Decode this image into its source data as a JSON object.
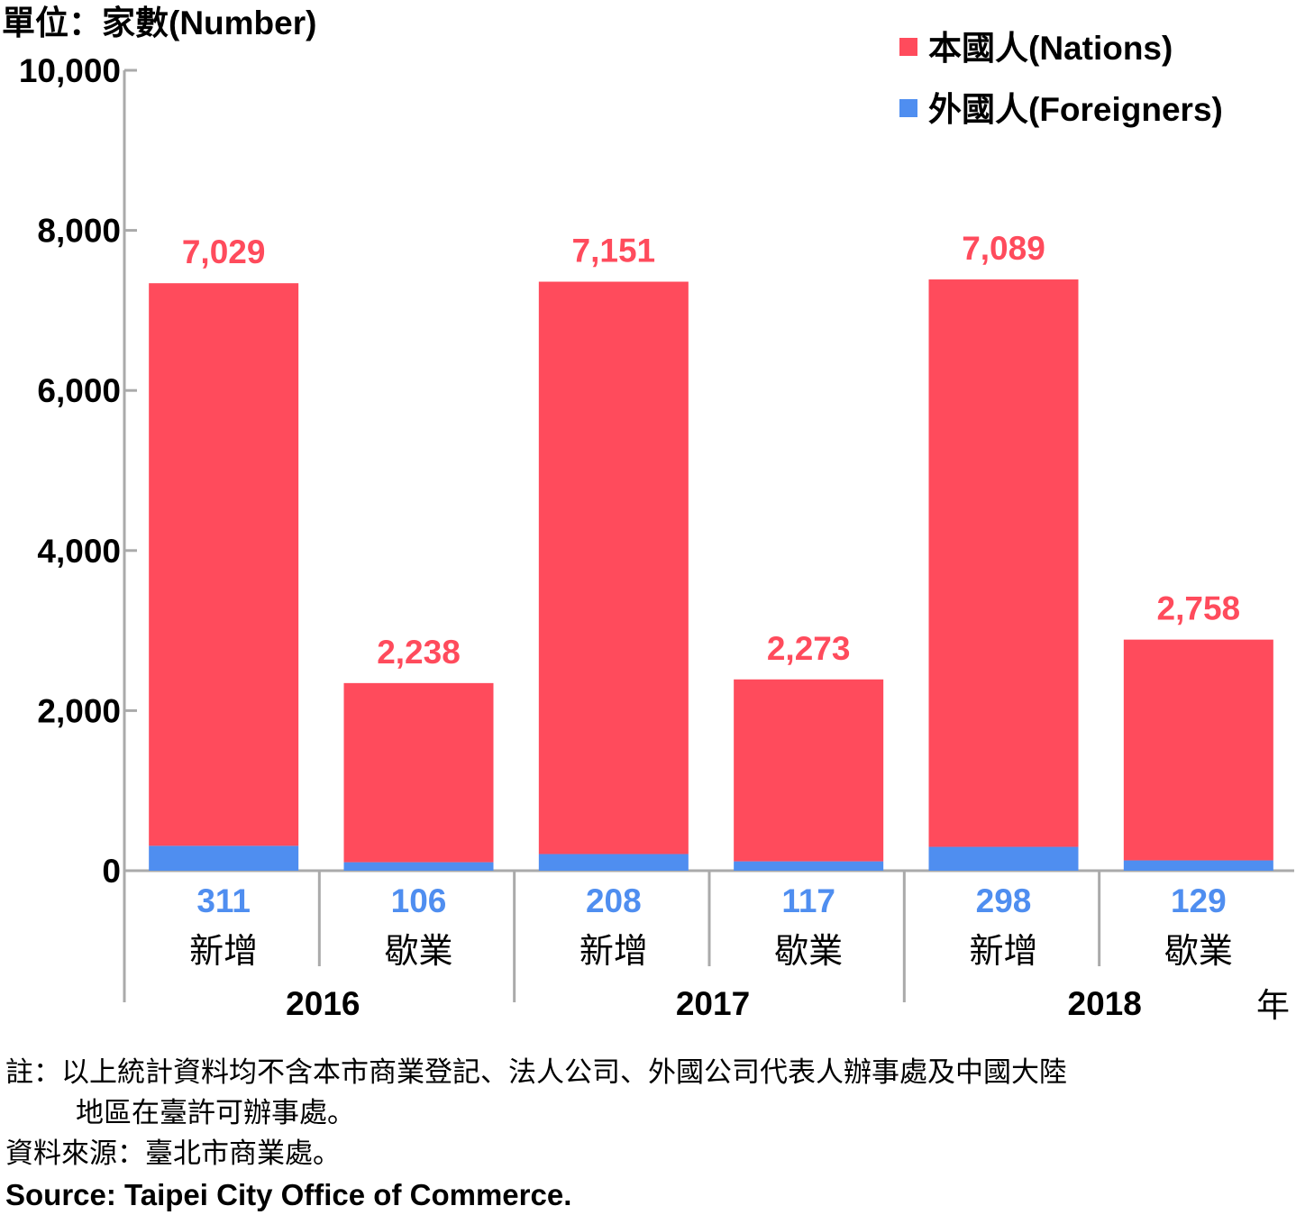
{
  "chart_data": {
    "type": "bar",
    "stacked": true,
    "unit_label": "單位：家數(Number)",
    "year_suffix": "年",
    "legend_position": "top-right",
    "ylim": [
      0,
      10000
    ],
    "yticks": [
      "0",
      "2,000",
      "4,000",
      "6,000",
      "8,000",
      "10,000"
    ],
    "ytick_values": [
      0,
      2000,
      4000,
      6000,
      8000,
      10000
    ],
    "groups": [
      {
        "year": "2016",
        "bars": [
          {
            "label": "新增",
            "nations": 7029,
            "foreigners": 311,
            "nations_label": "7,029",
            "foreigners_label": "311"
          },
          {
            "label": "歇業",
            "nations": 2238,
            "foreigners": 106,
            "nations_label": "2,238",
            "foreigners_label": "106"
          }
        ]
      },
      {
        "year": "2017",
        "bars": [
          {
            "label": "新增",
            "nations": 7151,
            "foreigners": 208,
            "nations_label": "7,151",
            "foreigners_label": "208"
          },
          {
            "label": "歇業",
            "nations": 2273,
            "foreigners": 117,
            "nations_label": "2,273",
            "foreigners_label": "117"
          }
        ]
      },
      {
        "year": "2018",
        "bars": [
          {
            "label": "新增",
            "nations": 7089,
            "foreigners": 298,
            "nations_label": "7,089",
            "foreigners_label": "298"
          },
          {
            "label": "歇業",
            "nations": 2758,
            "foreigners": 129,
            "nations_label": "2,758",
            "foreigners_label": "129"
          }
        ]
      }
    ],
    "series": [
      {
        "name": "本國人(Nations)",
        "color": "#ff4b5c"
      },
      {
        "name": "外國人(Foreigners)",
        "color": "#4f8ef0"
      }
    ]
  },
  "notes": {
    "line1": "註：以上統計資料均不含本市商業登記、法人公司、外國公司代表人辦事處及中國大陸",
    "line2": "地區在臺許可辦事處。",
    "line3": "資料來源：臺北市商業處。",
    "line4": "Source: Taipei City Office of Commerce."
  }
}
